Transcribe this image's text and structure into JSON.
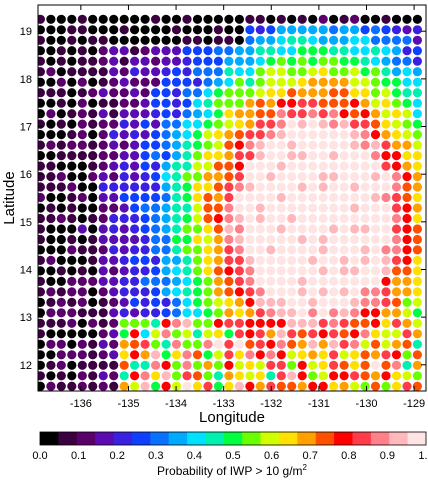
{
  "chart_data": {
    "type": "scatter",
    "title": "",
    "xlabel": "Longitude",
    "ylabel": "Latitude",
    "xlim": [
      -136.9,
      -128.75
    ],
    "ylim": [
      11.45,
      19.55
    ],
    "x_ticks": [
      -136,
      -135,
      -134,
      -133,
      -132,
      -131,
      -130,
      -129
    ],
    "x_tick_labels": [
      "-136",
      "-135",
      "-134",
      "-133",
      "-132",
      "-131",
      "-130",
      "-129"
    ],
    "y_ticks": [
      12,
      13,
      14,
      15,
      16,
      17,
      18,
      19
    ],
    "y_tick_labels": [
      "12",
      "13",
      "14",
      "15",
      "16",
      "17",
      "18",
      "19"
    ],
    "grid": false,
    "colorbar": {
      "label_main": "Probability of IWP > 10 g/m",
      "label_sup": "2",
      "ticks": [
        0.0,
        0.1,
        0.2,
        0.3,
        0.4,
        0.5,
        0.6,
        0.7,
        0.8,
        0.9,
        1.0
      ],
      "tick_labels": [
        "0.0",
        "0.1",
        "0.2",
        "0.3",
        "0.4",
        "0.5",
        "0.6",
        "0.7",
        "0.8",
        "0.9",
        "1.0"
      ],
      "colors": [
        "#000000",
        "#3a0040",
        "#5a006a",
        "#5b0cb0",
        "#3a20e0",
        "#1040ff",
        "#0a70ff",
        "#00aaff",
        "#00e0ff",
        "#00f0b0",
        "#00ff40",
        "#6aff00",
        "#d2ff00",
        "#ffe000",
        "#ffa000",
        "#ff5000",
        "#ff0000",
        "#ff3c48",
        "#ff8088",
        "#ffb8bc",
        "#ffe4e4"
      ]
    },
    "grid_lon": [
      -136.85,
      -128.9
    ],
    "grid_lat": [
      11.55,
      19.45
    ],
    "storm_core": {
      "center": [
        -131.1,
        15.05
      ],
      "radii": [
        1.55,
        1.95
      ],
      "value": 1.0
    },
    "description_regions": [
      {
        "region": "west edge and north-west corner",
        "value": 0.0
      },
      {
        "region": "inner band west of core",
        "value": 0.1
      },
      {
        "region": "transition band",
        "value": 0.3
      },
      {
        "region": "ring around core",
        "value": 0.7
      },
      {
        "region": "core",
        "value": 1.0
      }
    ]
  }
}
